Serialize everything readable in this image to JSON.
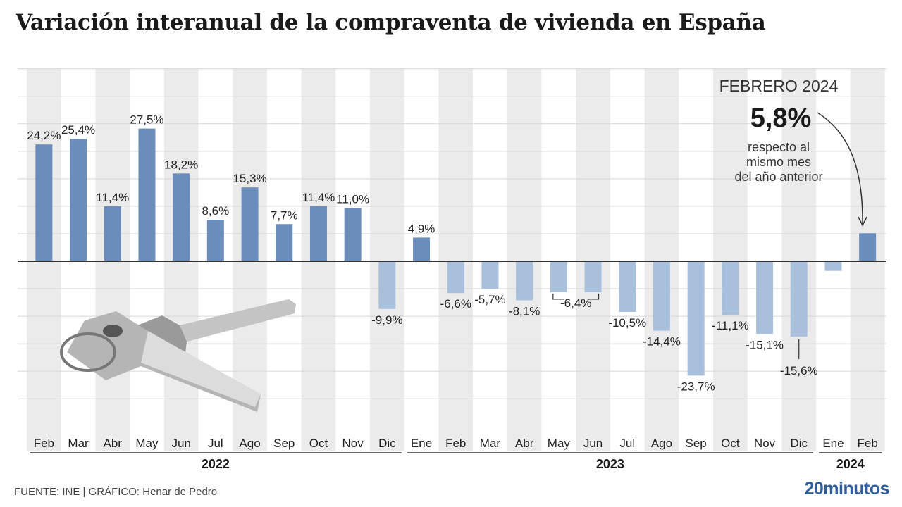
{
  "title": "Variación interanual de la compraventa de vivienda en España",
  "chart_data": {
    "type": "bar",
    "title": "Variación interanual de la compraventa de vivienda en España",
    "unit": "%",
    "ylim": [
      -30,
      35
    ],
    "grid": true,
    "categories": [
      "Feb",
      "Mar",
      "Abr",
      "May",
      "Jun",
      "Jul",
      "Ago",
      "Sep",
      "Oct",
      "Nov",
      "Dic",
      "Ene",
      "Feb",
      "Mar",
      "Abr",
      "May",
      "Jun",
      "Jul",
      "Ago",
      "Sep",
      "Oct",
      "Nov",
      "Dic",
      "Ene",
      "Feb"
    ],
    "values": [
      24.2,
      25.4,
      11.4,
      27.5,
      18.2,
      8.6,
      15.3,
      7.7,
      11.4,
      11.0,
      -9.9,
      4.9,
      -6.6,
      -5.7,
      -8.1,
      -6.4,
      -6.4,
      -10.5,
      -14.4,
      -23.7,
      -11.1,
      -15.1,
      -15.6,
      -2.0,
      5.8
    ],
    "value_labels": [
      "24,2%",
      "25,4%",
      "11,4%",
      "27,5%",
      "18,2%",
      "8,6%",
      "15,3%",
      "7,7%",
      "11,4%",
      "11,0%",
      "-9,9%",
      "4,9%",
      "-6,6%",
      "-5,7%",
      "-8,1%",
      "-6,4%",
      "",
      "-10,5%",
      "-14,4%",
      "-23,7%",
      "-11,1%",
      "-15,1%",
      "-15,6%",
      "",
      ""
    ],
    "years": [
      {
        "label": "2022",
        "start": 0,
        "end": 10
      },
      {
        "label": "2023",
        "start": 11,
        "end": 22
      },
      {
        "label": "2024",
        "start": 23,
        "end": 24
      }
    ],
    "colors": {
      "positive": "#6a8dbb",
      "negative": "#a9c0dd",
      "grid": "#d6d6d6",
      "stripe": "#ebebeb",
      "axis": "#333333"
    }
  },
  "callout": {
    "period": "FEBRERO  2024",
    "value": "5,8%",
    "note_lines": [
      "respecto al",
      "mismo mes",
      "del año anterior"
    ]
  },
  "footer": {
    "source": "FUENTE: INE  |  GRÁFICO: Henar de Pedro",
    "brand": "20minutos"
  }
}
